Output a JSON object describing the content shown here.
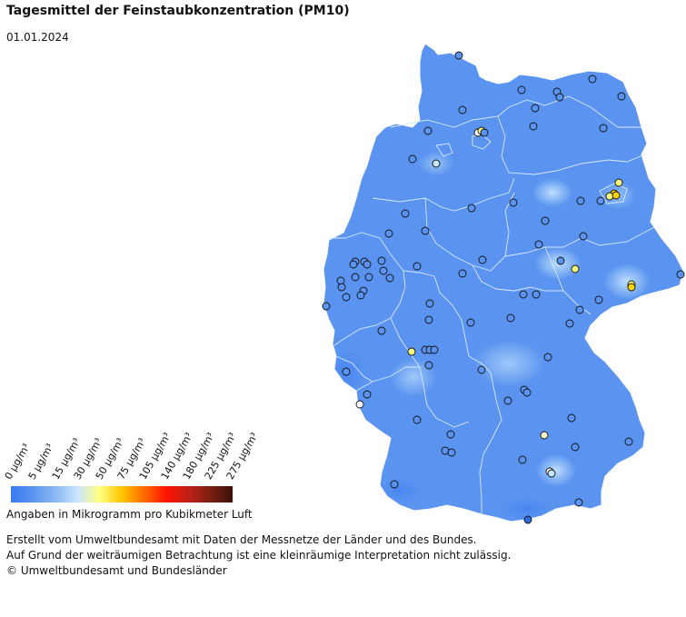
{
  "header": {
    "title": "Tagesmittel der Feinstaubkonzentration (PM10)",
    "date": "01.01.2024"
  },
  "legend": {
    "labels": [
      "0 µg/m³",
      "5 µg/m³",
      "15 µg/m³",
      "30 µg/m³",
      "50 µg/m³",
      "75 µg/m³",
      "105 µg/m³",
      "140 µg/m³",
      "180 µg/m³",
      "225 µg/m³",
      "275 µg/m³"
    ],
    "thresholds": [
      0,
      5,
      15,
      30,
      50,
      75,
      105,
      140,
      180,
      225,
      275
    ],
    "colors": [
      "#3a78f0",
      "#5a94f0",
      "#8ab8f2",
      "#c8e6ff",
      "#ffff80",
      "#ffc400",
      "#ff6a00",
      "#ff1400",
      "#c02018",
      "#7a2010",
      "#3a1008"
    ],
    "unit_note": "Angaben in Mikrogramm pro Kubikmeter Luft"
  },
  "map": {
    "region": "Deutschland",
    "base_color": "#5a94f0",
    "border_color": "#d8e8ff",
    "station_colors": {
      "blue": "#5a94f0",
      "light": "#c8e6ff",
      "yellow": "#ffff80",
      "gold": "#ffd200",
      "dark": "#2f6be0"
    }
  },
  "footer": {
    "line1": "Erstellt vom Umweltbundesamt mit Daten der Messnetze der Länder und des Bundes.",
    "line2": "Auf Grund der weiträumigen Betrachtung ist eine kleinräumige Interpretation nicht zulässig.",
    "line3": "© Umweltbundesamt und Bundesländer"
  }
}
